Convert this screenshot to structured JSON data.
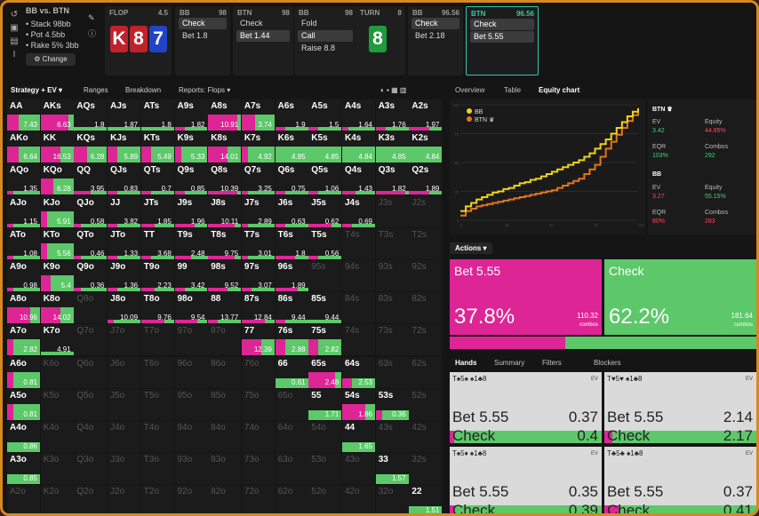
{
  "info": {
    "title": "BB vs. BTN",
    "stack": "• Stack 98bb",
    "pot": "• Pot 4.5bb",
    "rake": "• Rake 5% 3bb",
    "change_label": "⚙ Change"
  },
  "streets": [
    {
      "pos": "FLOP",
      "val": "4.5",
      "opts": []
    },
    {
      "pos": "BB",
      "val": "98",
      "opts": [
        {
          "label": "Check",
          "sel": true
        },
        {
          "label": "Bet 1.8",
          "sel": false
        }
      ]
    },
    {
      "pos": "BTN",
      "val": "98",
      "opts": [
        {
          "label": "Check",
          "sel": false
        },
        {
          "label": "Bet 1.44",
          "sel": true
        }
      ]
    },
    {
      "pos": "BB",
      "val": "98",
      "opts": [
        {
          "label": "Fold",
          "sel": false
        },
        {
          "label": "Call",
          "sel": true
        },
        {
          "label": "Raise 8.8",
          "sel": false
        }
      ]
    },
    {
      "pos": "TURN",
      "val": "8",
      "opts": []
    },
    {
      "pos": "BB",
      "val": "96.56",
      "opts": [
        {
          "label": "Check",
          "sel": true
        },
        {
          "label": "Bet 2.18",
          "sel": false
        }
      ]
    },
    {
      "pos": "BTN",
      "val": "96.56",
      "opts": [
        {
          "label": "Check",
          "sel": true
        },
        {
          "label": "Bet 5.55",
          "sel": true
        }
      ]
    }
  ],
  "board": {
    "flop": [
      {
        "rank": "K",
        "color": "#c0222c"
      },
      {
        "rank": "8",
        "color": "#c0222c"
      },
      {
        "rank": "7",
        "color": "#2144c6"
      }
    ],
    "turn": {
      "rank": "8",
      "color": "#1f9a3c"
    }
  },
  "left_tabs": [
    "Strategy + EV ▾",
    "Ranges",
    "Breakdown",
    "Reports: Flops ▾"
  ],
  "right_tabs": [
    "Overview",
    "Table",
    "Equity chart"
  ],
  "matrix": [
    [
      {
        "n": "AA",
        "p": 0.35,
        "v": "7.43",
        "h": 0.5
      },
      {
        "n": "AKs",
        "p": 0.85,
        "v": "6.63",
        "h": 0.5
      },
      {
        "n": "AQs",
        "p": 0,
        "v": "1.8",
        "h": 0.1
      },
      {
        "n": "AJs",
        "p": 0,
        "v": "1.87",
        "h": 0.1
      },
      {
        "n": "ATs",
        "p": 0,
        "v": "1.8",
        "h": 0.1
      },
      {
        "n": "A9s",
        "p": 0.3,
        "v": "1.82",
        "h": 0.1
      },
      {
        "n": "A8s",
        "p": 0.9,
        "v": "10.91",
        "h": 0.5
      },
      {
        "n": "A7s",
        "p": 0.4,
        "v": "3.74",
        "h": 0.5
      },
      {
        "n": "A6s",
        "p": 0.3,
        "v": "1.9",
        "h": 0.1
      },
      {
        "n": "A5s",
        "p": 0.3,
        "v": "1.5",
        "h": 0.1
      },
      {
        "n": "A4s",
        "p": 0.2,
        "v": "1.64",
        "h": 0.1
      },
      {
        "n": "A3s",
        "p": 0.3,
        "v": "1.76",
        "h": 0.1
      },
      {
        "n": "A2s",
        "p": 0.6,
        "v": "1.97",
        "h": 0.1
      }
    ],
    [
      {
        "n": "AKo",
        "p": 0.35,
        "v": "6.64",
        "h": 0.5
      },
      {
        "n": "KK",
        "p": 0.6,
        "v": "16.53",
        "h": 0.5
      },
      {
        "n": "KQs",
        "p": 0.4,
        "v": "6.28",
        "h": 0.5
      },
      {
        "n": "KJs",
        "p": 0.3,
        "v": "5.89",
        "h": 0.5
      },
      {
        "n": "KTs",
        "p": 0.3,
        "v": "5.49",
        "h": 0.5
      },
      {
        "n": "K9s",
        "p": 0.2,
        "v": "5.33",
        "h": 0.5
      },
      {
        "n": "K8s",
        "p": 0.6,
        "v": "14.01",
        "h": 0.5
      },
      {
        "n": "K7s",
        "p": 0.2,
        "v": "4.92",
        "h": 0.5
      },
      {
        "n": "K6s",
        "p": 0,
        "v": "4.85",
        "h": 0.5
      },
      {
        "n": "K5s",
        "p": 0,
        "v": "4.85",
        "h": 0.5
      },
      {
        "n": "K4s",
        "p": 0,
        "v": "4.84",
        "h": 0.5
      },
      {
        "n": "K3s",
        "p": 0,
        "v": "4.85",
        "h": 0.5
      },
      {
        "n": "K2s",
        "p": 0,
        "v": "4.84",
        "h": 0.5
      }
    ],
    [
      {
        "n": "AQo",
        "p": 0.2,
        "v": "1.35",
        "h": 0.1
      },
      {
        "n": "KQo",
        "p": 0.4,
        "v": "6.28",
        "h": 0.5
      },
      {
        "n": "QQ",
        "p": 0.5,
        "v": "3.95",
        "h": 0.1
      },
      {
        "n": "QJs",
        "p": 0.3,
        "v": "0.83",
        "h": 0.1
      },
      {
        "n": "QTs",
        "p": 0.3,
        "v": "0.7",
        "h": 0.1
      },
      {
        "n": "Q9s",
        "p": 0.3,
        "v": "0.85",
        "h": 0.1
      },
      {
        "n": "Q8s",
        "p": 0.9,
        "v": "10.39",
        "h": 0.1
      },
      {
        "n": "Q7s",
        "p": 0.2,
        "v": "3.25",
        "h": 0.1
      },
      {
        "n": "Q6s",
        "p": 0.3,
        "v": "0.75",
        "h": 0.1
      },
      {
        "n": "Q5s",
        "p": 0.3,
        "v": "1.06",
        "h": 0.1
      },
      {
        "n": "Q4s",
        "p": 0.4,
        "v": "1.43",
        "h": 0.1
      },
      {
        "n": "Q3s",
        "p": 0.9,
        "v": "1.82",
        "h": 0.1
      },
      {
        "n": "Q2s",
        "p": 0.6,
        "v": "1.89",
        "h": 0.1
      }
    ],
    [
      {
        "n": "AJo",
        "p": 0.2,
        "v": "1.15",
        "h": 0.1
      },
      {
        "n": "KJo",
        "p": 0.2,
        "v": "5.91",
        "h": 0.5
      },
      {
        "n": "QJo",
        "p": 0.2,
        "v": "0.58",
        "h": 0.1
      },
      {
        "n": "JJ",
        "p": 0.3,
        "v": "3.82",
        "h": 0.1
      },
      {
        "n": "JTs",
        "p": 0.4,
        "v": "1.85",
        "h": 0.1
      },
      {
        "n": "J9s",
        "p": 0.6,
        "v": "1.96",
        "h": 0.1
      },
      {
        "n": "J8s",
        "p": 0.8,
        "v": "10.11",
        "h": 0.1
      },
      {
        "n": "J7s",
        "p": 0.2,
        "v": "2.89",
        "h": 0.1
      },
      {
        "n": "J6s",
        "p": 0.3,
        "v": "0.63",
        "h": 0.1
      },
      {
        "n": "J5s",
        "p": 0.7,
        "v": "0.62",
        "h": 0.1
      },
      {
        "n": "J4s",
        "p": 0.3,
        "v": "0.69",
        "h": 0.1
      },
      {
        "n": "J3s",
        "p": -1,
        "v": "",
        "h": 0
      },
      {
        "n": "J2s",
        "p": -1,
        "v": "",
        "h": 0
      }
    ],
    [
      {
        "n": "ATo",
        "p": 0.2,
        "v": "1.08",
        "h": 0.1
      },
      {
        "n": "KTo",
        "p": 0.2,
        "v": "5.56",
        "h": 0.5
      },
      {
        "n": "QTo",
        "p": 0.2,
        "v": "0.46",
        "h": 0.1
      },
      {
        "n": "JTo",
        "p": 0.3,
        "v": "1.33",
        "h": 0.1
      },
      {
        "n": "TT",
        "p": 0.3,
        "v": "3.68",
        "h": 0.1
      },
      {
        "n": "T9s",
        "p": 0.5,
        "v": "2.48",
        "h": 0.1
      },
      {
        "n": "T8s",
        "p": 0.8,
        "v": "9.75",
        "h": 0.1
      },
      {
        "n": "T7s",
        "p": 0.2,
        "v": "3.01",
        "h": 0.1
      },
      {
        "n": "T6s",
        "p": 0.6,
        "v": "1.8",
        "h": 0.1
      },
      {
        "n": "T5s",
        "p": 0.3,
        "v": "0.56",
        "h": 0.1
      },
      {
        "n": "T4s",
        "p": -1,
        "v": "",
        "h": 0
      },
      {
        "n": "T3s",
        "p": -1,
        "v": "",
        "h": 0
      },
      {
        "n": "T2s",
        "p": -1,
        "v": "",
        "h": 0
      }
    ],
    [
      {
        "n": "A9o",
        "p": 0.2,
        "v": "0.98",
        "h": 0.1
      },
      {
        "n": "K9o",
        "p": 0.3,
        "v": "5.4",
        "h": 0.5
      },
      {
        "n": "Q9o",
        "p": 0.2,
        "v": "0.36",
        "h": 0.1
      },
      {
        "n": "J9o",
        "p": 0.3,
        "v": "1.36",
        "h": 0.1
      },
      {
        "n": "T9o",
        "p": 0.4,
        "v": "2.23",
        "h": 0.1
      },
      {
        "n": "99",
        "p": 0.3,
        "v": "3.42",
        "h": 0.1
      },
      {
        "n": "98s",
        "p": 0.6,
        "v": "9.52",
        "h": 0.1
      },
      {
        "n": "97s",
        "p": 0.3,
        "v": "3.07",
        "h": 0.1
      },
      {
        "n": "96s",
        "p": 0.7,
        "v": "1.89",
        "h": 0.1
      },
      {
        "n": "95s",
        "p": -1,
        "v": "",
        "h": 0
      },
      {
        "n": "94s",
        "p": -1,
        "v": "",
        "h": 0
      },
      {
        "n": "93s",
        "p": -1,
        "v": "",
        "h": 0
      },
      {
        "n": "92s",
        "p": -1,
        "v": "",
        "h": 0
      }
    ],
    [
      {
        "n": "A8o",
        "p": 0.7,
        "v": "10.96",
        "h": 0.5
      },
      {
        "n": "K8o",
        "p": 0.6,
        "v": "14.02",
        "h": 0.5
      },
      {
        "n": "Q8o",
        "p": -1,
        "v": "",
        "h": 0
      },
      {
        "n": "J8o",
        "p": 0.2,
        "v": "10.09",
        "h": 0.1
      },
      {
        "n": "T8o",
        "p": 0.7,
        "v": "9.76",
        "h": 0.1
      },
      {
        "n": "98o",
        "p": 0.7,
        "v": "9.54",
        "h": 0.1
      },
      {
        "n": "88",
        "p": 0.3,
        "v": "13.77",
        "h": 0.1
      },
      {
        "n": "87s",
        "p": 0.7,
        "v": "12.84",
        "h": 0.1
      },
      {
        "n": "86s",
        "p": 0.3,
        "v": "9.44",
        "h": 0.1
      },
      {
        "n": "85s",
        "p": 0,
        "v": "9.44",
        "h": 0.1
      },
      {
        "n": "84s",
        "p": -1,
        "v": "",
        "h": 0
      },
      {
        "n": "83s",
        "p": -1,
        "v": "",
        "h": 0
      },
      {
        "n": "82s",
        "p": -1,
        "v": "",
        "h": 0
      }
    ],
    [
      {
        "n": "A7o",
        "p": 0.2,
        "v": "2.82",
        "h": 0.5
      },
      {
        "n": "K7o",
        "p": 0,
        "v": "4.91",
        "h": 0.1
      },
      {
        "n": "Q7o",
        "p": -1,
        "v": "",
        "h": 0
      },
      {
        "n": "J7o",
        "p": -1,
        "v": "",
        "h": 0
      },
      {
        "n": "T7o",
        "p": -1,
        "v": "",
        "h": 0
      },
      {
        "n": "97o",
        "p": -1,
        "v": "",
        "h": 0
      },
      {
        "n": "87o",
        "p": -1,
        "v": "",
        "h": 0
      },
      {
        "n": "77",
        "p": 0.6,
        "v": "12.39",
        "h": 0.5
      },
      {
        "n": "76s",
        "p": 0.3,
        "v": "2.88",
        "h": 0.5
      },
      {
        "n": "75s",
        "p": 0.3,
        "v": "2.82",
        "h": 0.5
      },
      {
        "n": "74s",
        "p": -1,
        "v": "",
        "h": 0
      },
      {
        "n": "73s",
        "p": -1,
        "v": "",
        "h": 0
      },
      {
        "n": "72s",
        "p": -1,
        "v": "",
        "h": 0
      }
    ],
    [
      {
        "n": "A6o",
        "p": 0.2,
        "v": "0.81",
        "h": 0.5
      },
      {
        "n": "K6o",
        "p": -1,
        "v": "",
        "h": 0
      },
      {
        "n": "Q6o",
        "p": -1,
        "v": "",
        "h": 0
      },
      {
        "n": "J6o",
        "p": -1,
        "v": "",
        "h": 0
      },
      {
        "n": "T6o",
        "p": -1,
        "v": "",
        "h": 0
      },
      {
        "n": "96o",
        "p": -1,
        "v": "",
        "h": 0
      },
      {
        "n": "86o",
        "p": -1,
        "v": "",
        "h": 0
      },
      {
        "n": "76o",
        "p": -1,
        "v": "",
        "h": 0
      },
      {
        "n": "66",
        "p": 0,
        "v": "0.61",
        "h": 0.3
      },
      {
        "n": "65s",
        "p": 0.8,
        "v": "2.48",
        "h": 0.5
      },
      {
        "n": "64s",
        "p": 0.3,
        "v": "2.53",
        "h": 0.3
      },
      {
        "n": "63s",
        "p": -1,
        "v": "",
        "h": 0
      },
      {
        "n": "62s",
        "p": -1,
        "v": "",
        "h": 0
      }
    ],
    [
      {
        "n": "A5o",
        "p": 0.2,
        "v": "0.81",
        "h": 0.5
      },
      {
        "n": "K5o",
        "p": -1,
        "v": "",
        "h": 0
      },
      {
        "n": "Q5o",
        "p": -1,
        "v": "",
        "h": 0
      },
      {
        "n": "J5o",
        "p": -1,
        "v": "",
        "h": 0
      },
      {
        "n": "T5o",
        "p": -1,
        "v": "",
        "h": 0
      },
      {
        "n": "95o",
        "p": -1,
        "v": "",
        "h": 0
      },
      {
        "n": "85o",
        "p": -1,
        "v": "",
        "h": 0
      },
      {
        "n": "75o",
        "p": -1,
        "v": "",
        "h": 0
      },
      {
        "n": "65o",
        "p": -1,
        "v": "",
        "h": 0
      },
      {
        "n": "55",
        "p": 0,
        "v": "1.71",
        "h": 0.3
      },
      {
        "n": "54s",
        "p": 0.7,
        "v": "1.86",
        "h": 0.5
      },
      {
        "n": "53s",
        "p": 0.2,
        "v": "0.36",
        "h": 0.3
      },
      {
        "n": "52s",
        "p": -1,
        "v": "",
        "h": 0
      }
    ],
    [
      {
        "n": "A4o",
        "p": 0,
        "v": "0.86",
        "h": 0.3
      },
      {
        "n": "K4o",
        "p": -1,
        "v": "",
        "h": 0
      },
      {
        "n": "Q4o",
        "p": -1,
        "v": "",
        "h": 0
      },
      {
        "n": "J4o",
        "p": -1,
        "v": "",
        "h": 0
      },
      {
        "n": "T4o",
        "p": -1,
        "v": "",
        "h": 0
      },
      {
        "n": "94o",
        "p": -1,
        "v": "",
        "h": 0
      },
      {
        "n": "84o",
        "p": -1,
        "v": "",
        "h": 0
      },
      {
        "n": "74o",
        "p": -1,
        "v": "",
        "h": 0
      },
      {
        "n": "64o",
        "p": -1,
        "v": "",
        "h": 0
      },
      {
        "n": "54o",
        "p": -1,
        "v": "",
        "h": 0
      },
      {
        "n": "44",
        "p": 0,
        "v": "1.65",
        "h": 0.3
      },
      {
        "n": "43s",
        "p": -1,
        "v": "",
        "h": 0
      },
      {
        "n": "42s",
        "p": -1,
        "v": "",
        "h": 0
      }
    ],
    [
      {
        "n": "A3o",
        "p": 0,
        "v": "0.85",
        "h": 0
      },
      {
        "n": "K3o",
        "p": -1,
        "v": "",
        "h": 0
      },
      {
        "n": "Q3o",
        "p": -1,
        "v": "",
        "h": 0
      },
      {
        "n": "J3o",
        "p": -1,
        "v": "",
        "h": 0
      },
      {
        "n": "T3o",
        "p": -1,
        "v": "",
        "h": 0
      },
      {
        "n": "93o",
        "p": -1,
        "v": "",
        "h": 0
      },
      {
        "n": "83o",
        "p": -1,
        "v": "",
        "h": 0
      },
      {
        "n": "73o",
        "p": -1,
        "v": "",
        "h": 0
      },
      {
        "n": "63o",
        "p": -1,
        "v": "",
        "h": 0
      },
      {
        "n": "53o",
        "p": -1,
        "v": "",
        "h": 0
      },
      {
        "n": "43o",
        "p": -1,
        "v": "",
        "h": 0
      },
      {
        "n": "33",
        "p": 0,
        "v": "1.57",
        "h": 0.3
      },
      {
        "n": "32s",
        "p": -1,
        "v": "",
        "h": 0
      }
    ],
    [
      {
        "n": "A2o",
        "p": -1,
        "v": "",
        "h": 0
      },
      {
        "n": "K2o",
        "p": -1,
        "v": "",
        "h": 0
      },
      {
        "n": "Q2o",
        "p": -1,
        "v": "",
        "h": 0
      },
      {
        "n": "J2o",
        "p": -1,
        "v": "",
        "h": 0
      },
      {
        "n": "T2o",
        "p": -1,
        "v": "",
        "h": 0
      },
      {
        "n": "92o",
        "p": -1,
        "v": "",
        "h": 0
      },
      {
        "n": "82o",
        "p": -1,
        "v": "",
        "h": 0
      },
      {
        "n": "72o",
        "p": -1,
        "v": "",
        "h": 0
      },
      {
        "n": "62o",
        "p": -1,
        "v": "",
        "h": 0
      },
      {
        "n": "52o",
        "p": -1,
        "v": "",
        "h": 0
      },
      {
        "n": "42o",
        "p": -1,
        "v": "",
        "h": 0
      },
      {
        "n": "32o",
        "p": -1,
        "v": "",
        "h": 0
      },
      {
        "n": "22",
        "p": 0,
        "v": "1.51",
        "h": 0.3
      }
    ]
  ],
  "equity": {
    "legend": [
      "BB",
      "BTN ♛"
    ],
    "colors": {
      "bb": "#f2d21b",
      "btn": "#e0761e"
    },
    "xticks": [
      "0",
      "25",
      "50",
      "75",
      "100"
    ],
    "yticks": [
      "100",
      "75",
      "50",
      "25",
      "0"
    ],
    "bb_curve": [
      8,
      12,
      15,
      18,
      20,
      22,
      24,
      25,
      27,
      28,
      30,
      32,
      33,
      35,
      36,
      38,
      40,
      42,
      44,
      46,
      48,
      50,
      52,
      55,
      58,
      62,
      66,
      70,
      75,
      80,
      85,
      90,
      94,
      97
    ],
    "btn_curve": [
      4,
      8,
      10,
      12,
      13,
      14,
      15,
      16,
      17,
      18,
      19,
      20,
      21,
      22,
      23,
      24,
      25,
      26,
      28,
      30,
      32,
      34,
      36,
      40,
      44,
      48,
      55,
      62,
      68,
      74,
      80,
      86,
      91,
      95
    ]
  },
  "stats": {
    "btn_title": "BTN ♛",
    "bb_title": "BB",
    "ev_label": "EV",
    "equity_label": "Equity",
    "eqr_label": "EQR",
    "combos_label": "Combos",
    "btn_ev": "3.42",
    "btn_equity": "44.85%",
    "btn_eqr": "103%",
    "btn_combos": "292",
    "bb_ev": "3.27",
    "bb_equity": "55.15%",
    "bb_eqr": "80%",
    "bb_combos": "283"
  },
  "actions_label": "Actions ▾",
  "actions": [
    {
      "label": "Bet 5.55",
      "pct": "37.8%",
      "combos": "110.32",
      "combos_label": "combos",
      "freq": 0.378
    },
    {
      "label": "Check",
      "pct": "62.2%",
      "combos": "181.64",
      "combos_label": "combos",
      "freq": 0.622
    }
  ],
  "hand_tabs": [
    "Hands",
    "Summary",
    "Filters",
    "Blockers"
  ],
  "hands": [
    {
      "head": "T♠5♠  ♠1♣8",
      "ev": "EV",
      "r1": "Bet 5.55",
      "v1": "0.37",
      "r2": "Check",
      "v2": "0.4",
      "bet_freq": 0.03
    },
    {
      "head": "T♥5♥  ♠1♣8",
      "ev": "EV",
      "r1": "Bet 5.55",
      "v1": "2.14",
      "r2": "Check",
      "v2": "2.17",
      "bet_freq": 0.05
    },
    {
      "head": "T♠5♦  ♠1♣8",
      "ev": "EV",
      "r1": "Bet 5.55",
      "v1": "0.35",
      "r2": "Check",
      "v2": "0.39",
      "bet_freq": 0.03
    },
    {
      "head": "T♣5♣  ♠1♣8",
      "ev": "EV",
      "r1": "Bet 5.55",
      "v1": "0.37",
      "r2": "Check",
      "v2": "0.41",
      "bet_freq": 0.1
    }
  ]
}
